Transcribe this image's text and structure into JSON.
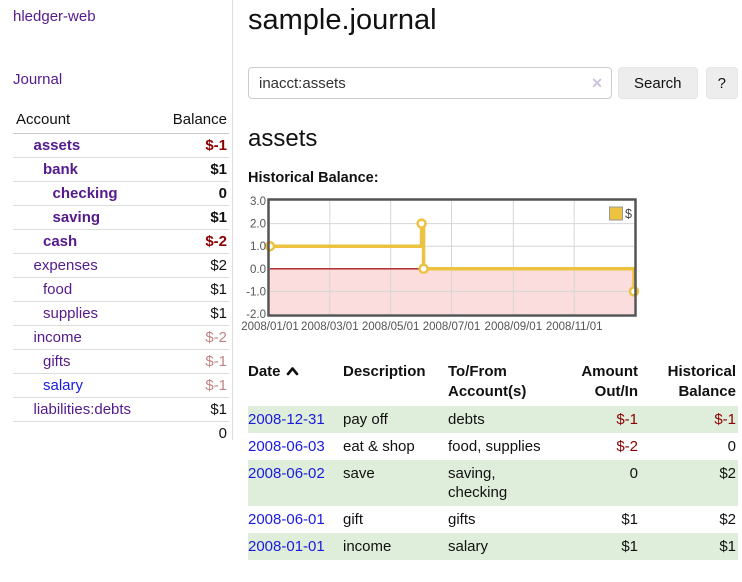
{
  "sidebar": {
    "app_title": "hledger-web",
    "nav": {
      "journal": "Journal"
    },
    "accounts_table": {
      "headers": {
        "account": "Account",
        "balance": "Balance"
      },
      "rows": [
        {
          "name": "assets",
          "balance": "$-1",
          "indent": 1,
          "in_filter": true
        },
        {
          "name": "bank",
          "balance": "$1",
          "indent": 2,
          "in_filter": true
        },
        {
          "name": "checking",
          "balance": "0",
          "indent": 3,
          "in_filter": true
        },
        {
          "name": "saving",
          "balance": "$1",
          "indent": 3,
          "in_filter": true
        },
        {
          "name": "cash",
          "balance": "$-2",
          "indent": 2,
          "in_filter": true
        },
        {
          "name": "expenses",
          "balance": "$2",
          "indent": 1
        },
        {
          "name": "food",
          "balance": "$1",
          "indent": 2
        },
        {
          "name": "supplies",
          "balance": "$1",
          "indent": 2
        },
        {
          "name": "income",
          "balance": "$-2",
          "indent": 1,
          "dimmed": true
        },
        {
          "name": "gifts",
          "balance": "$-1",
          "indent": 2,
          "dimmed": true
        },
        {
          "name": "salary",
          "balance": "$-1",
          "indent": 2,
          "dimmed": true,
          "visited": false
        },
        {
          "name": "liabilities:debts",
          "balance": "$1",
          "indent": 1
        }
      ],
      "total": "0"
    }
  },
  "header": {
    "title": "sample.journal"
  },
  "search": {
    "value": "inacct:assets",
    "clear_icon": "✕",
    "button_label": "Search",
    "help_label": "?"
  },
  "account_view": {
    "title": "assets",
    "chart_label": "Historical Balance:"
  },
  "chart_data": {
    "type": "line",
    "step": true,
    "title": "Historical Balance",
    "series": [
      {
        "name": "$",
        "color": "#edc240",
        "points": [
          [
            "2008-01-01",
            1
          ],
          [
            "2008-06-01",
            2
          ],
          [
            "2008-06-03",
            0
          ],
          [
            "2008-12-31",
            -1
          ]
        ]
      }
    ],
    "x_range": [
      "2008-01-01",
      "2008-12-31"
    ],
    "ylim": [
      -2,
      3
    ],
    "y_ticks": [
      3,
      2,
      1,
      0,
      -1,
      -2
    ],
    "y_tick_labels": [
      "3.0",
      "2.0",
      "1.0",
      "0.0",
      "-1.0",
      "-2.0"
    ],
    "x_tick_labels": [
      "2008/01/01",
      "2008/03/01",
      "2008/05/01",
      "2008/07/01",
      "2008/09/01",
      "2008/11/01"
    ],
    "grid": true,
    "legend": {
      "label": "$",
      "position": "top-right"
    },
    "line_color": "#edc240",
    "zero_line_color": "#a81a1a",
    "negative_region_color": "#fcdddd",
    "border_color": "#545454",
    "grid_color": "#d6d6d6",
    "axis_text_color": "#545454"
  },
  "register_table": {
    "headers": [
      {
        "line1": "Date",
        "line2": ""
      },
      {
        "line1": "Description",
        "line2": ""
      },
      {
        "line1": "To/From",
        "line2": "Account(s)"
      },
      {
        "line1": "Amount",
        "line2": "Out/In"
      },
      {
        "line1": "Historical",
        "line2": "Balance"
      }
    ],
    "sort_icon": "chevron-up",
    "rows": [
      {
        "date": "2008-12-31",
        "description": "pay off",
        "accounts": "debts",
        "amount": "$-1",
        "balance": "$-1"
      },
      {
        "date": "2008-06-03",
        "description": "eat & shop",
        "accounts": "food, supplies",
        "amount": "$-2",
        "balance": "0"
      },
      {
        "date": "2008-06-02",
        "description": "save",
        "accounts": "saving, checking",
        "amount": "0",
        "balance": "$2"
      },
      {
        "date": "2008-06-01",
        "description": "gift",
        "accounts": "gifts",
        "amount": "$1",
        "balance": "$2"
      },
      {
        "date": "2008-01-01",
        "description": "income",
        "accounts": "salary",
        "amount": "$1",
        "balance": "$1"
      }
    ]
  }
}
